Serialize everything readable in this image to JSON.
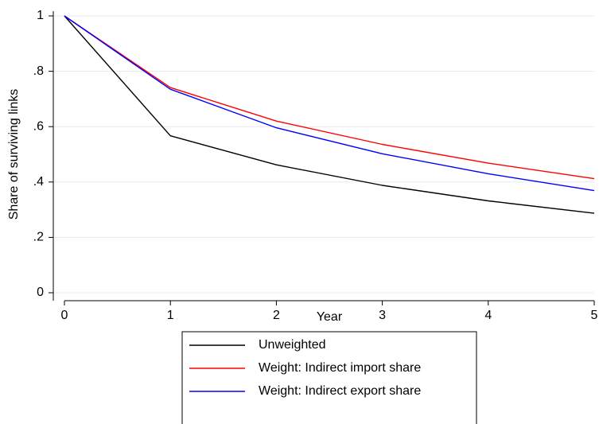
{
  "chart_data": {
    "type": "line",
    "xlabel": "Year",
    "ylabel": "Share of surviving links",
    "xlim": [
      0,
      5
    ],
    "ylim": [
      0,
      1
    ],
    "x_ticks": [
      {
        "value": 0,
        "label": "0"
      },
      {
        "value": 1,
        "label": "1"
      },
      {
        "value": 2,
        "label": "2"
      },
      {
        "value": 3,
        "label": "3"
      },
      {
        "value": 4,
        "label": "4"
      },
      {
        "value": 5,
        "label": "5"
      }
    ],
    "y_ticks": [
      {
        "value": 0,
        "label": "0"
      },
      {
        "value": 0.2,
        "label": ".2"
      },
      {
        "value": 0.4,
        "label": ".4"
      },
      {
        "value": 0.6,
        "label": ".6"
      },
      {
        "value": 0.8,
        "label": ".8"
      },
      {
        "value": 1,
        "label": "1"
      }
    ],
    "grid": "horizontal",
    "legend_position": "bottom",
    "x": [
      0,
      1,
      2,
      3,
      4,
      5
    ],
    "series": [
      {
        "name": "Unweighted",
        "color": "#000000",
        "values": [
          1.0,
          0.567,
          0.462,
          0.388,
          0.332,
          0.287
        ]
      },
      {
        "name": "Weight: Indirect import share",
        "color": "#ff0000",
        "values": [
          1.0,
          0.741,
          0.62,
          0.536,
          0.468,
          0.412
        ]
      },
      {
        "name": "Weight: Indirect export share",
        "color": "#0000ff",
        "values": [
          1.0,
          0.735,
          0.596,
          0.502,
          0.43,
          0.369
        ]
      }
    ]
  }
}
